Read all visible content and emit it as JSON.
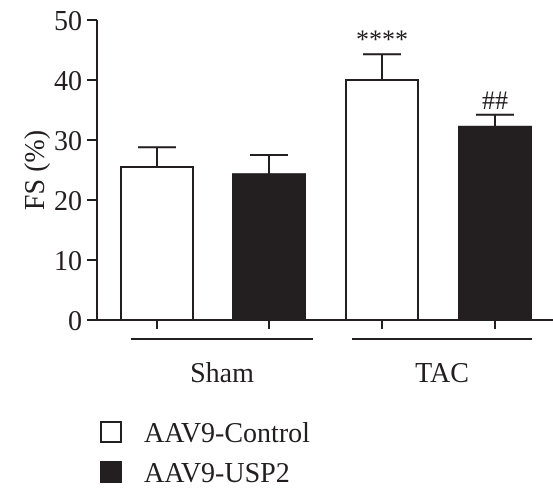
{
  "chart_data": {
    "type": "bar",
    "ylabel": "FS (%)",
    "ylim": [
      0,
      50
    ],
    "yticks": [
      0,
      10,
      20,
      30,
      40,
      50
    ],
    "groups": [
      {
        "label": "Sham",
        "bars": [
          {
            "series": "AAV9-Control",
            "value": 25.5,
            "error": 3.3,
            "annotation": ""
          },
          {
            "series": "AAV9-USP2",
            "value": 24.3,
            "error": 3.2,
            "annotation": ""
          }
        ]
      },
      {
        "label": "TAC",
        "bars": [
          {
            "series": "AAV9-Control",
            "value": 40.0,
            "error": 4.3,
            "annotation": "****"
          },
          {
            "series": "AAV9-USP2",
            "value": 32.2,
            "error": 2.0,
            "annotation": "##"
          }
        ]
      }
    ],
    "legend": {
      "placement": "bottom-left",
      "entries": [
        {
          "name": "AAV9-Control",
          "fill": "#ffffff"
        },
        {
          "name": "AAV9-USP2",
          "fill": "#231f20"
        }
      ]
    },
    "colors": {
      "axis": "#231f20",
      "control_fill": "#ffffff",
      "usp2_fill": "#231f20",
      "annotation": "#231f20"
    },
    "grid": false
  }
}
